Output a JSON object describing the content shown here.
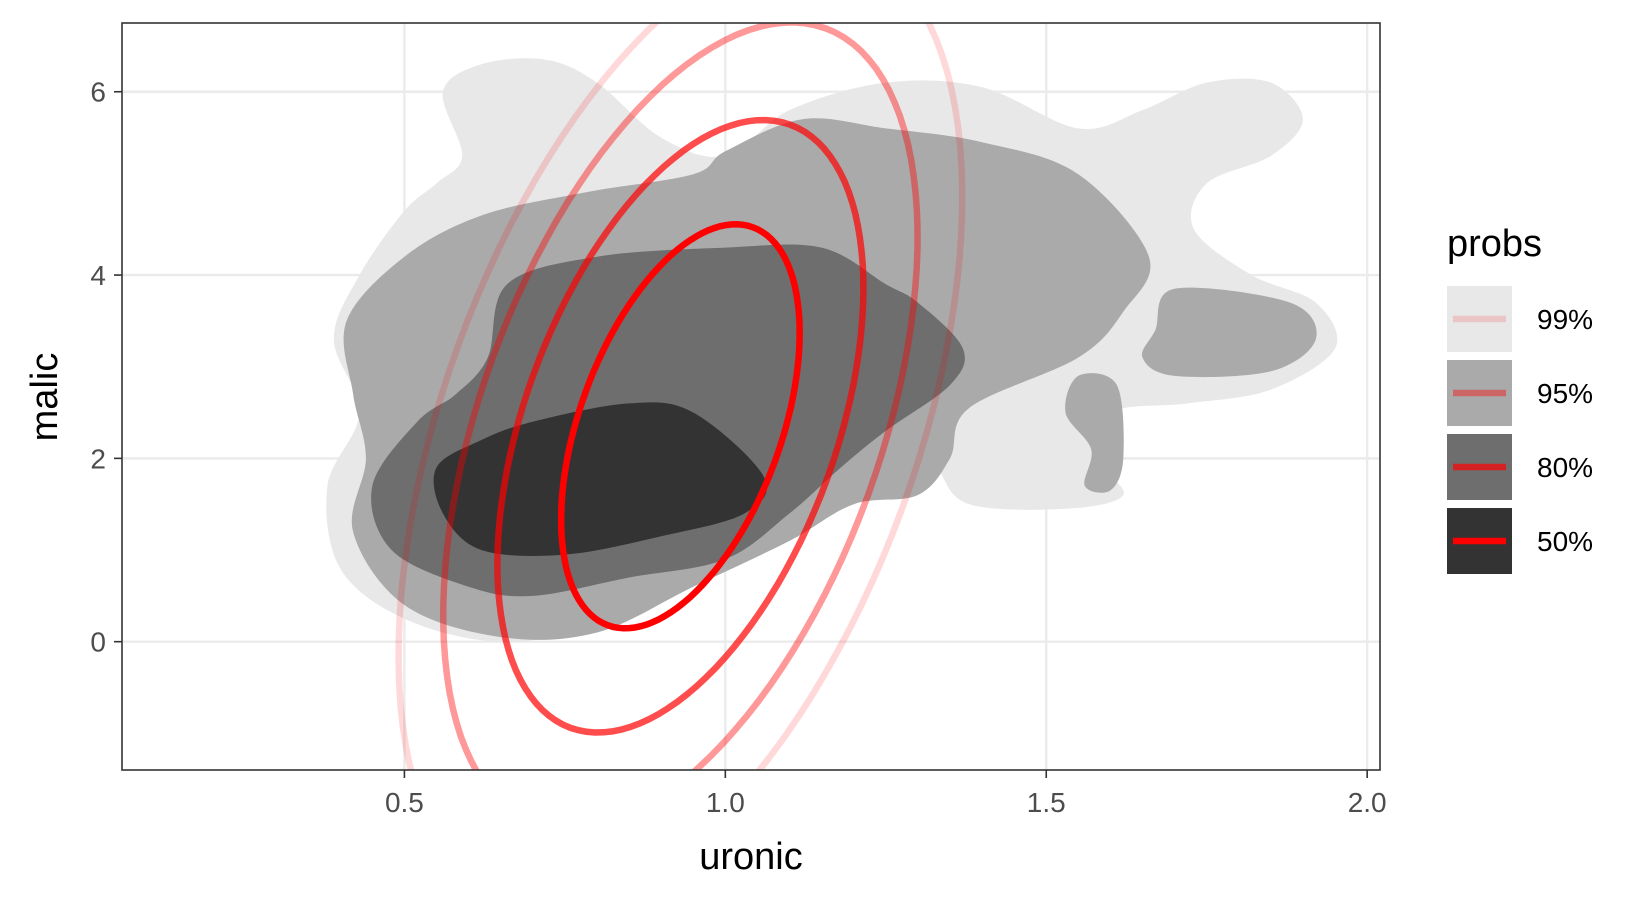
{
  "chart_data": {
    "type": "density-contour",
    "xlabel": "uronic",
    "ylabel": "malic",
    "xlim": [
      0.06,
      2.02
    ],
    "ylim": [
      -1.4,
      6.75
    ],
    "x_ticks": [
      {
        "value": 0.5,
        "label": "0.5"
      },
      {
        "value": 1.0,
        "label": "1.0"
      },
      {
        "value": 1.5,
        "label": "1.5"
      },
      {
        "value": 2.0,
        "label": "2.0"
      }
    ],
    "y_ticks": [
      {
        "value": 0,
        "label": "0"
      },
      {
        "value": 2,
        "label": "2"
      },
      {
        "value": 4,
        "label": "4"
      },
      {
        "value": 6,
        "label": "6"
      }
    ],
    "grid": true,
    "legend": {
      "title": "probs",
      "position": "right",
      "entries": [
        {
          "label": "99%",
          "fill": "#e8e8e8",
          "line": "#ff0000",
          "line_opacity": 0.15
        },
        {
          "label": "95%",
          "fill": "#aaaaaa",
          "line": "#ff0000",
          "line_opacity": 0.4
        },
        {
          "label": "80%",
          "fill": "#6e6e6e",
          "line": "#ff0000",
          "line_opacity": 0.7
        },
        {
          "label": "50%",
          "fill": "#333333",
          "line": "#ff0000",
          "line_opacity": 1.0
        }
      ]
    },
    "density_regions": [
      {
        "level": "99%",
        "fill": "#e8e8e8",
        "polygons": [
          [
            [
              0.59,
              5.3
            ],
            [
              0.56,
              6.0
            ],
            [
              0.62,
              6.3
            ],
            [
              0.72,
              6.35
            ],
            [
              0.8,
              6.1
            ],
            [
              0.9,
              5.5
            ],
            [
              1.0,
              5.3
            ],
            [
              1.1,
              5.8
            ],
            [
              1.25,
              6.1
            ],
            [
              1.4,
              6.05
            ],
            [
              1.55,
              5.6
            ],
            [
              1.65,
              5.8
            ],
            [
              1.75,
              6.1
            ],
            [
              1.85,
              6.1
            ],
            [
              1.9,
              5.7
            ],
            [
              1.85,
              5.3
            ],
            [
              1.75,
              5.0
            ],
            [
              1.73,
              4.5
            ],
            [
              1.82,
              4.0
            ],
            [
              1.92,
              3.7
            ],
            [
              1.95,
              3.2
            ],
            [
              1.85,
              2.75
            ],
            [
              1.72,
              2.6
            ],
            [
              1.6,
              2.5
            ],
            [
              1.58,
              2.0
            ],
            [
              1.62,
              1.6
            ],
            [
              1.53,
              1.45
            ],
            [
              1.38,
              1.5
            ],
            [
              1.33,
              1.9
            ],
            [
              1.29,
              2.35
            ],
            [
              1.25,
              2.2
            ],
            [
              1.2,
              1.8
            ],
            [
              1.05,
              1.2
            ],
            [
              0.9,
              0.8
            ],
            [
              0.8,
              0.2
            ],
            [
              0.65,
              0.0
            ],
            [
              0.5,
              0.25
            ],
            [
              0.4,
              0.8
            ],
            [
              0.38,
              1.7
            ],
            [
              0.43,
              2.5
            ],
            [
              0.39,
              3.3
            ],
            [
              0.43,
              4.0
            ],
            [
              0.5,
              4.7
            ],
            [
              0.55,
              5.0
            ]
          ]
        ]
      },
      {
        "level": "95%",
        "fill": "#aaaaaa",
        "polygons": [
          [
            [
              0.42,
              2.7
            ],
            [
              0.41,
              3.5
            ],
            [
              0.5,
              4.2
            ],
            [
              0.62,
              4.65
            ],
            [
              0.78,
              4.9
            ],
            [
              0.95,
              5.1
            ],
            [
              1.0,
              5.35
            ],
            [
              1.12,
              5.7
            ],
            [
              1.25,
              5.6
            ],
            [
              1.4,
              5.45
            ],
            [
              1.55,
              5.1
            ],
            [
              1.66,
              4.2
            ],
            [
              1.62,
              3.6
            ],
            [
              1.55,
              3.1
            ],
            [
              1.38,
              2.55
            ],
            [
              1.35,
              2.0
            ],
            [
              1.3,
              1.6
            ],
            [
              1.2,
              1.5
            ],
            [
              1.1,
              1.1
            ],
            [
              0.95,
              0.6
            ],
            [
              0.8,
              0.1
            ],
            [
              0.65,
              0.05
            ],
            [
              0.5,
              0.4
            ],
            [
              0.42,
              1.2
            ],
            [
              0.44,
              2.0
            ]
          ],
          [
            [
              1.65,
              3.1
            ],
            [
              1.7,
              2.9
            ],
            [
              1.85,
              2.95
            ],
            [
              1.92,
              3.3
            ],
            [
              1.88,
              3.7
            ],
            [
              1.7,
              3.85
            ],
            [
              1.67,
              3.4
            ]
          ],
          [
            [
              1.56,
              1.7
            ],
            [
              1.6,
              1.65
            ],
            [
              1.62,
              2.0
            ],
            [
              1.61,
              2.8
            ],
            [
              1.55,
              2.9
            ],
            [
              1.53,
              2.5
            ],
            [
              1.57,
              2.1
            ]
          ]
        ]
      },
      {
        "level": "80%",
        "fill": "#6e6e6e",
        "polygons": [
          [
            [
              0.48,
              1.0
            ],
            [
              0.45,
              1.7
            ],
            [
              0.52,
              2.4
            ],
            [
              0.58,
              2.7
            ],
            [
              0.63,
              3.1
            ],
            [
              0.66,
              3.9
            ],
            [
              0.8,
              4.2
            ],
            [
              1.0,
              4.3
            ],
            [
              1.15,
              4.3
            ],
            [
              1.25,
              3.9
            ],
            [
              1.3,
              3.7
            ],
            [
              1.37,
              3.2
            ],
            [
              1.35,
              2.8
            ],
            [
              1.25,
              2.3
            ],
            [
              1.18,
              1.9
            ],
            [
              1.1,
              1.4
            ],
            [
              1.0,
              0.9
            ],
            [
              0.85,
              0.7
            ],
            [
              0.7,
              0.5
            ],
            [
              0.6,
              0.6
            ]
          ]
        ]
      },
      {
        "level": "50%",
        "fill": "#333333",
        "polygons": [
          [
            [
              0.56,
              1.4
            ],
            [
              0.55,
              1.9
            ],
            [
              0.62,
              2.2
            ],
            [
              0.7,
              2.4
            ],
            [
              0.85,
              2.6
            ],
            [
              0.95,
              2.5
            ],
            [
              1.06,
              1.8
            ],
            [
              1.03,
              1.4
            ],
            [
              0.9,
              1.15
            ],
            [
              0.75,
              0.95
            ],
            [
              0.62,
              1.0
            ]
          ]
        ]
      }
    ],
    "normal_ellipses": [
      {
        "level": "99%",
        "center": [
          0.93,
          2.35
        ],
        "rx": 0.79,
        "ry": 2.58,
        "rotation_deg": 70,
        "color": "#ff0000",
        "opacity": 0.15
      },
      {
        "level": "95%",
        "center": [
          0.93,
          2.35
        ],
        "rx": 0.66,
        "ry": 2.18,
        "rotation_deg": 70,
        "color": "#ff0000",
        "opacity": 0.4
      },
      {
        "level": "80%",
        "center": [
          0.93,
          2.35
        ],
        "rx": 0.5,
        "ry": 1.7,
        "rotation_deg": 70,
        "color": "#ff0000",
        "opacity": 0.7
      },
      {
        "level": "50%",
        "center": [
          0.93,
          2.35
        ],
        "rx": 0.33,
        "ry": 1.1,
        "rotation_deg": 70,
        "color": "#ff0000",
        "opacity": 1.0
      }
    ]
  }
}
